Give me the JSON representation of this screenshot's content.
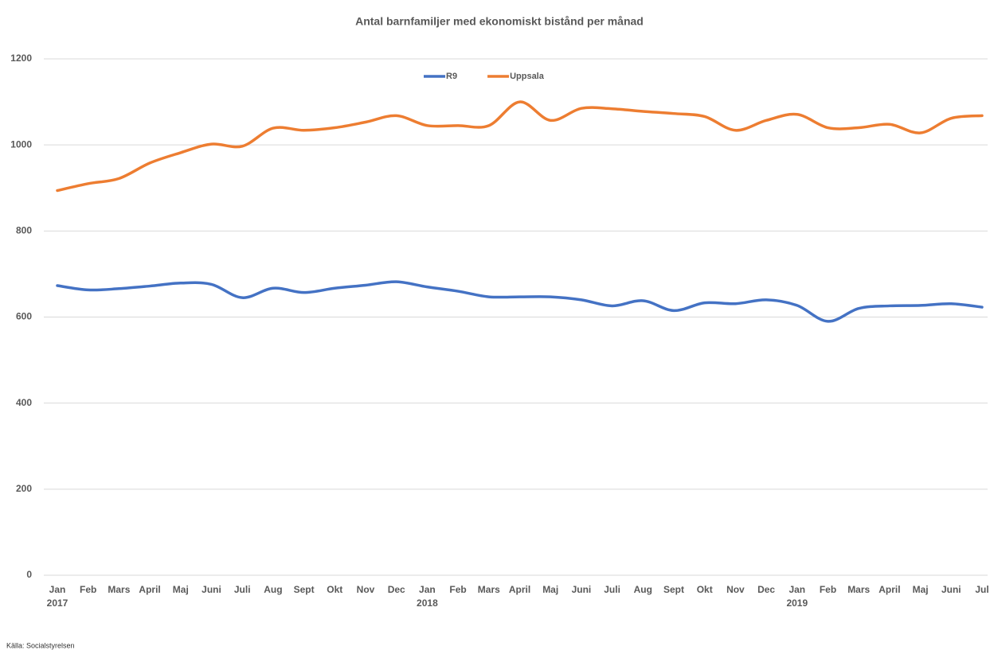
{
  "chart_data": {
    "type": "line",
    "title": "Antal barnfamiljer med ekonomiskt bistånd per månad",
    "categories": [
      "Jan",
      "Feb",
      "Mars",
      "April",
      "Maj",
      "Juni",
      "Juli",
      "Aug",
      "Sept",
      "Okt",
      "Nov",
      "Dec",
      "Jan",
      "Feb",
      "Mars",
      "April",
      "Maj",
      "Juni",
      "Juli",
      "Aug",
      "Sept",
      "Okt",
      "Nov",
      "Dec",
      "Jan",
      "Feb",
      "Mars",
      "April",
      "Maj",
      "Juni",
      "Jul"
    ],
    "years": [
      "2017",
      null,
      null,
      null,
      null,
      null,
      null,
      null,
      null,
      null,
      null,
      null,
      "2018",
      null,
      null,
      null,
      null,
      null,
      null,
      null,
      null,
      null,
      null,
      null,
      "2019",
      null,
      null,
      null,
      null,
      null,
      null
    ],
    "series": [
      {
        "name": "R9",
        "color": "#4472c4",
        "values": [
          673,
          663,
          666,
          672,
          679,
          676,
          645,
          667,
          657,
          667,
          674,
          682,
          670,
          660,
          647,
          647,
          647,
          640,
          626,
          638,
          615,
          633,
          631,
          640,
          627,
          590,
          620,
          626,
          627,
          631,
          623
        ]
      },
      {
        "name": "Uppsala",
        "color": "#ed7d31",
        "values": [
          894,
          910,
          922,
          958,
          982,
          1002,
          997,
          1039,
          1034,
          1040,
          1053,
          1068,
          1045,
          1045,
          1045,
          1100,
          1057,
          1085,
          1084,
          1078,
          1073,
          1066,
          1034,
          1057,
          1071,
          1040,
          1040,
          1048,
          1028,
          1062,
          1068
        ]
      }
    ],
    "ylim": [
      0,
      1200
    ],
    "yticks": [
      0,
      200,
      400,
      600,
      800,
      1000,
      1200
    ],
    "grid": true,
    "smooth": true,
    "legend": "top",
    "source": "Källa: Socialstyrelsen"
  }
}
